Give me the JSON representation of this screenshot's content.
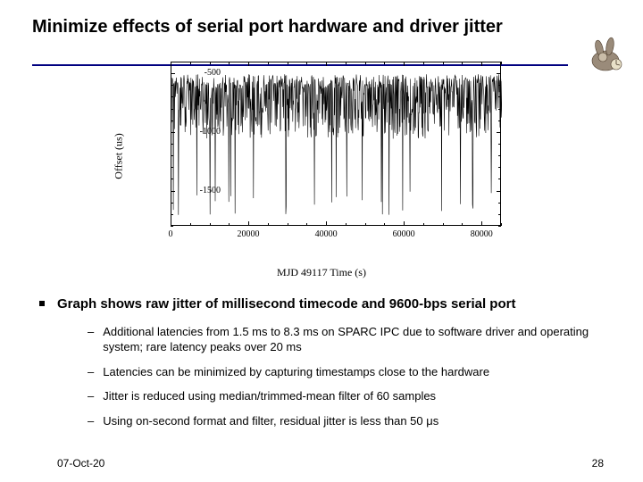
{
  "title": "Minimize effects of serial port hardware and driver jitter",
  "footer": {
    "date": "07-Oct-20",
    "page": "28"
  },
  "colors": {
    "title_rule": "#000080",
    "text": "#000000",
    "bg": "#ffffff",
    "plot_line": "#000000"
  },
  "chart": {
    "type": "line",
    "ylabel": "Offset (us)",
    "xlabel": "MJD 49117 Time (s)",
    "xlim": [
      0,
      85000
    ],
    "ylim": [
      -1800,
      -400
    ],
    "xticks": [
      0,
      20000,
      40000,
      60000,
      80000
    ],
    "xtick_minor_step": 5000,
    "yticks": [
      -500,
      -1000,
      -1500
    ],
    "ytick_minor_step": 100,
    "line_color": "#000000",
    "background_color": "#ffffff",
    "border_color": "#000000",
    "data_points": 900,
    "offset_baseline_us": -800,
    "jitter_amplitude_us": 250,
    "spike_min_us": -1700,
    "spike_probability": 0.03
  },
  "bullet": "Graph shows raw jitter of millisecond timecode and 9600-bps serial port",
  "subs": [
    "Additional latencies from 1.5 ms to 8.3 ms on SPARC IPC due to software driver and operating system; rare latency peaks over 20 ms",
    "Latencies can be minimized by capturing timestamps close to the hardware",
    "Jitter is reduced using median/trimmed-mean filter of 60 samples",
    "Using on-second format and filter, residual jitter is less than 50 μs"
  ]
}
